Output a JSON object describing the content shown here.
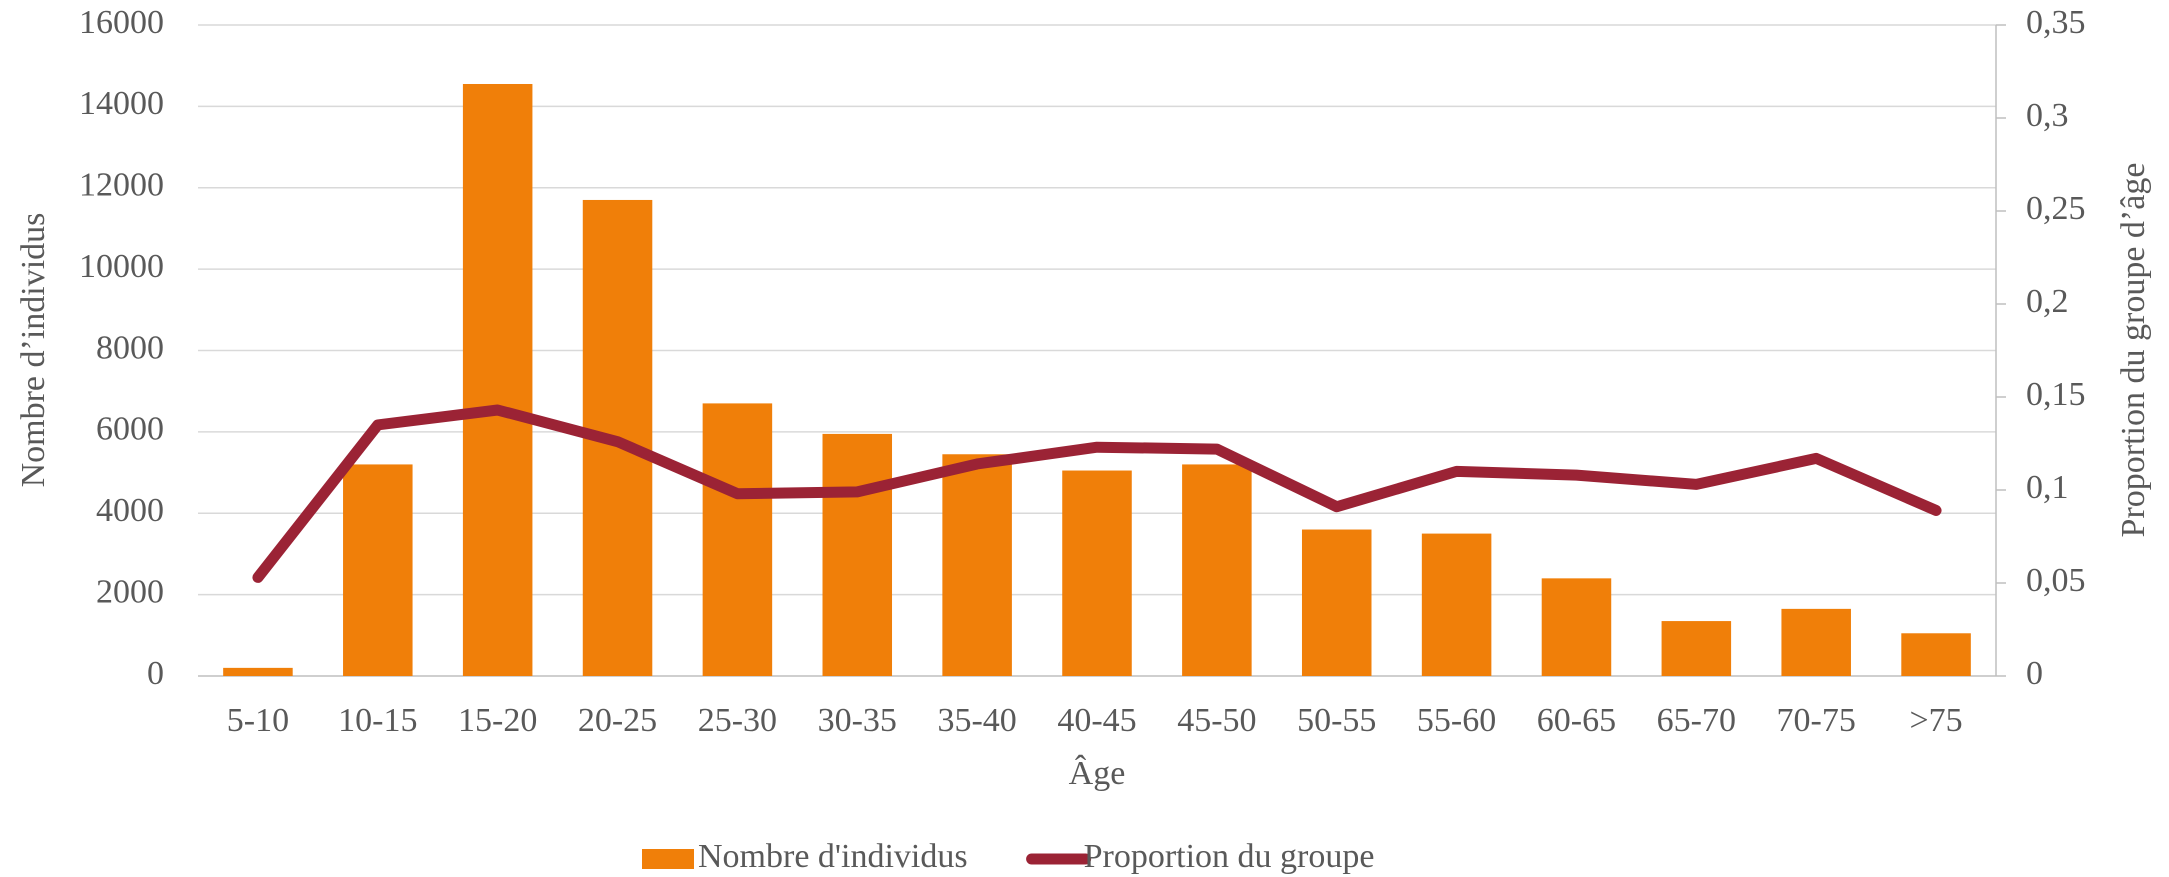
{
  "chart_data": {
    "type": "bar-line",
    "x_label": "Âge",
    "y_label": "Nombre d’individus",
    "y2_label": "Proportion du groupe d’âge",
    "categories": [
      "5-10",
      "10-15",
      "15-20",
      "20-25",
      "25-30",
      "30-35",
      "35-40",
      "40-45",
      "45-50",
      "50-55",
      "55-60",
      "60-65",
      "65-70",
      "70-75",
      ">75"
    ],
    "series": [
      {
        "name": "Nombre d'individus",
        "type": "bar",
        "color": "#f07f09",
        "values": [
          200,
          5200,
          14550,
          11700,
          6700,
          5950,
          5450,
          5050,
          5200,
          3600,
          3500,
          2400,
          1350,
          1650,
          1050
        ]
      },
      {
        "name": "Proportion du groupe",
        "type": "line",
        "axis": "y2",
        "color": "#9b2335",
        "values": [
          0.053,
          0.135,
          0.143,
          0.126,
          0.098,
          0.099,
          0.114,
          0.123,
          0.122,
          0.091,
          0.11,
          0.108,
          0.103,
          0.117,
          0.089
        ]
      }
    ],
    "ylim": [
      0,
      16000
    ],
    "yticks": [
      0,
      2000,
      4000,
      6000,
      8000,
      10000,
      12000,
      14000,
      16000
    ],
    "y2lim": [
      0,
      0.35
    ],
    "y2ticks": [
      0,
      {
        "value": 0.05,
        "label": "0,05"
      },
      {
        "value": 0.1,
        "label": "0,1"
      },
      {
        "value": 0.15,
        "label": "0,15"
      },
      {
        "value": 0.2,
        "label": "0,2"
      },
      {
        "value": 0.25,
        "label": "0,25"
      },
      {
        "value": 0.3,
        "label": "0,3"
      },
      {
        "value": 0.35,
        "label": "0,35"
      }
    ],
    "grid": true,
    "legend": "bottom"
  }
}
